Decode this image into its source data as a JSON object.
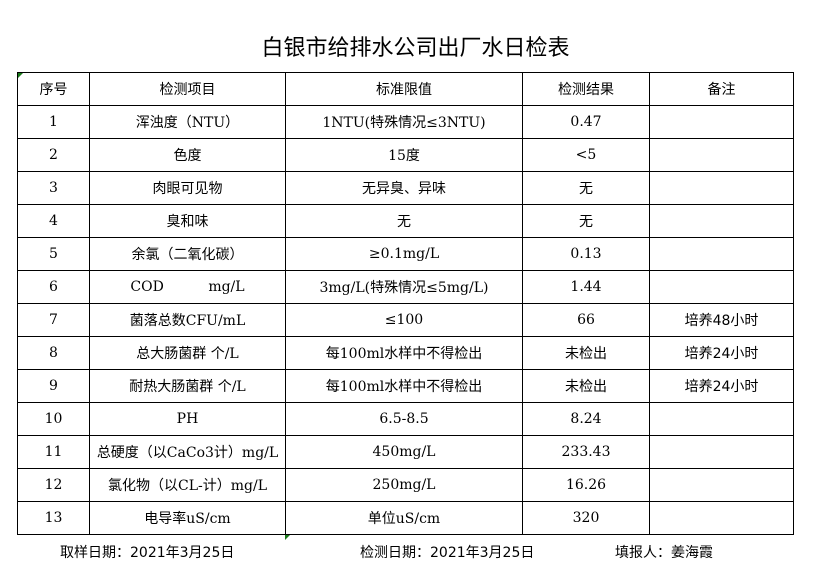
{
  "title": "白银市给排水公司出厂水日检表",
  "headers": [
    "序号",
    "检测项目",
    "标准限值",
    "检测结果",
    "备注"
  ],
  "rows": [
    [
      "1",
      "浑浊度（NTU）",
      "1NTU(特殊情况≤3NTU)",
      "0.47",
      ""
    ],
    [
      "2",
      "色度",
      "15度",
      "<5",
      ""
    ],
    [
      "3",
      "肉眼可见物",
      "无异臭、异味",
      "无",
      ""
    ],
    [
      "4",
      "臭和味",
      "无",
      "无",
      ""
    ],
    [
      "5",
      "余氯（二氧化碳）",
      "≥0.1mg/L",
      "0.13",
      ""
    ],
    [
      "6",
      "COD          mg/L",
      "3mg/L(特殊情况≤5mg/L)",
      "1.44",
      ""
    ],
    [
      "7",
      "菌落总数CFU/mL",
      "≤100",
      "66",
      "培养48小时"
    ],
    [
      "8",
      "总大肠菌群 个/L",
      "每100ml水样中不得检出",
      "未检出",
      "培养24小时"
    ],
    [
      "9",
      "耐热大肠菌群 个/L",
      "每100ml水样中不得检出",
      "未检出",
      "培养24小时"
    ],
    [
      "10",
      "PH",
      "6.5-8.5",
      "8.24",
      ""
    ],
    [
      "11",
      "总硬度（以CaCo3计）mg/L",
      "450mg/L",
      "233.43",
      ""
    ],
    [
      "12",
      "氯化物（以CL-计）mg/L",
      "250mg/L",
      "16.26",
      ""
    ],
    [
      "13",
      "电导率uS/cm",
      "单位uS/cm",
      "320",
      ""
    ]
  ],
  "footer": {
    "sampling_date": "取样日期：2021年3月25日",
    "test_date": "检测日期：2021年3月25日",
    "filled_by": "填报人：姜海霞"
  }
}
